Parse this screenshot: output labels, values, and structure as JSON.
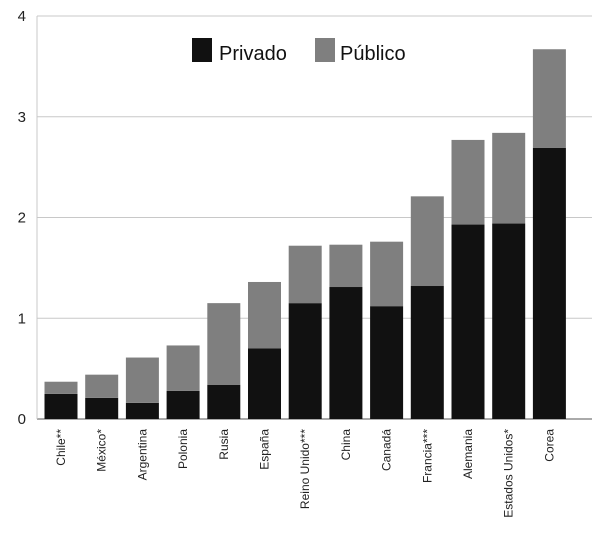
{
  "chart_data": {
    "type": "bar",
    "stacked": true,
    "categories": [
      "Chile**",
      "México*",
      "Argentina",
      "Polonia",
      "Rusia",
      "España",
      "Reino Unido***",
      "China",
      "Canadá",
      "Francia***",
      "Alemania",
      "Estados Unidos*",
      "Corea"
    ],
    "series": [
      {
        "name": "Privado",
        "values": [
          0.25,
          0.21,
          0.16,
          0.28,
          0.34,
          0.7,
          1.15,
          1.31,
          1.12,
          1.32,
          1.93,
          1.94,
          2.69
        ]
      },
      {
        "name": "Público",
        "values": [
          0.12,
          0.23,
          0.45,
          0.45,
          0.81,
          0.66,
          0.57,
          0.42,
          0.64,
          0.89,
          0.84,
          0.9,
          0.98
        ]
      }
    ],
    "y_ticks": [
      0,
      1,
      2,
      3,
      4
    ],
    "ylim": [
      0,
      4
    ],
    "grid": "horizontal",
    "legend_position": "top-center",
    "colors": {
      "Privado": "#111111",
      "Público": "#7f7f7f",
      "grid": "#c8c8c8",
      "axis": "#555555"
    }
  }
}
